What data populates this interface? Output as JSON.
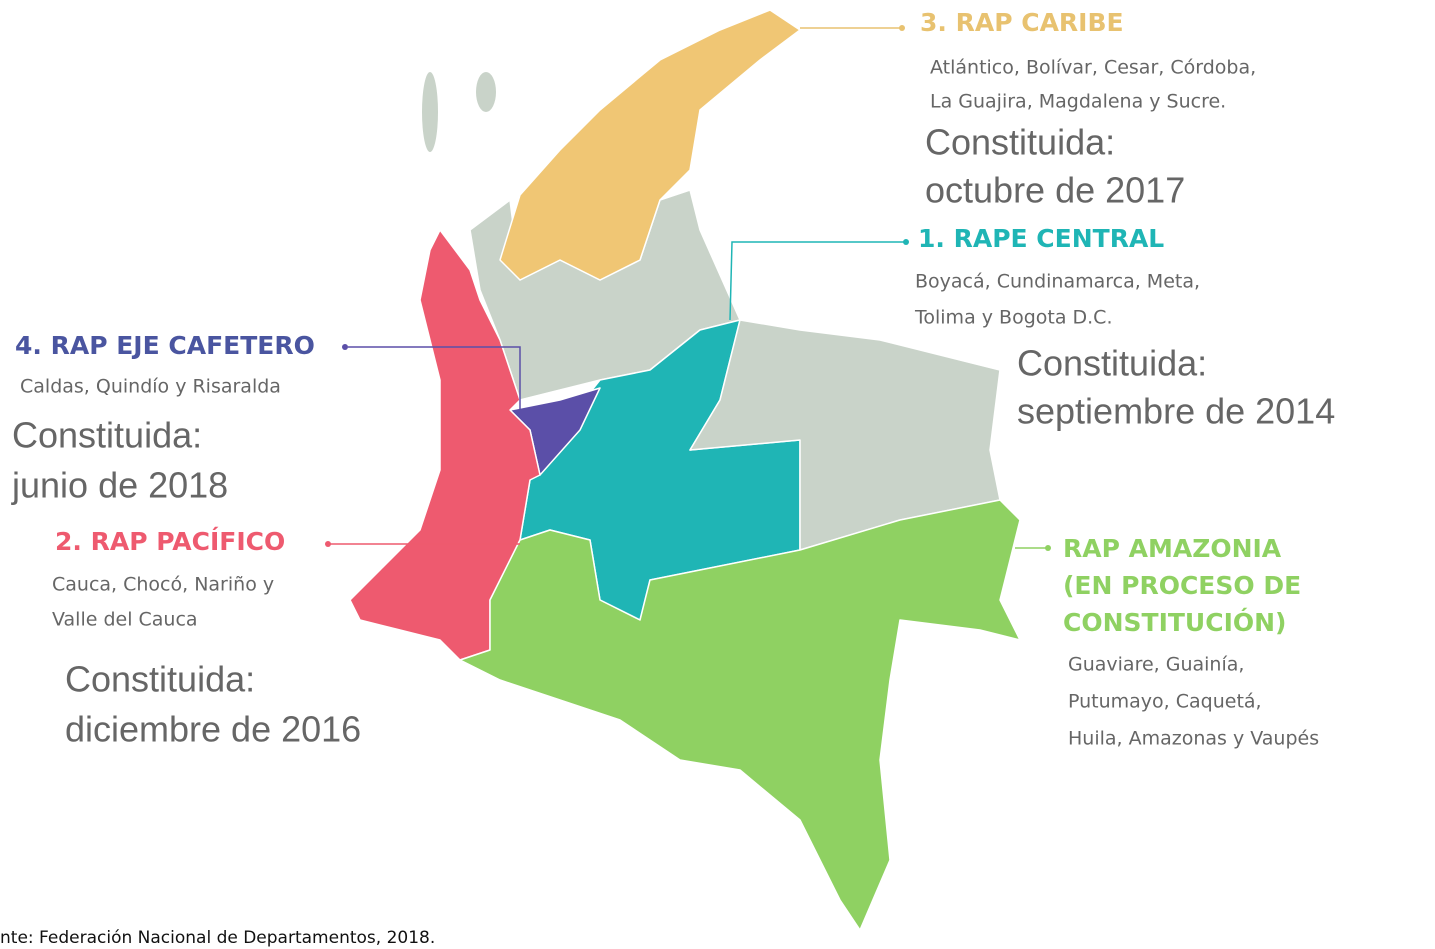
{
  "regions": [
    {
      "title": [
        "3. RAP CARIBE"
      ],
      "departments": [
        "Atlántico, Bolívar, Cesar, Córdoba,",
        "La Guajira, Magdalena y Sucre."
      ],
      "status": [
        "Constituida:",
        "octubre de 2017"
      ]
    },
    {
      "title": [
        "1. RAPE CENTRAL"
      ],
      "departments": [
        "Boyacá, Cundinamarca, Meta,",
        "Tolima y Bogota D.C."
      ],
      "status": [
        "Constituida:",
        "septiembre de 2014"
      ]
    },
    {
      "title": [
        "4. RAP EJE CAFETERO"
      ],
      "departments": [
        "Caldas, Quindío y Risaralda"
      ],
      "status": [
        "Constituida:",
        "junio de 2018"
      ]
    },
    {
      "title": [
        "2. RAP PACÍFICO"
      ],
      "departments": [
        "Cauca, Chocó, Nariño y",
        "Valle del Cauca"
      ],
      "status": [
        "Constituida:",
        "diciembre de 2016"
      ]
    },
    {
      "title": [
        "RAP AMAZONIA",
        "(EN PROCESO DE",
        "CONSTITUCIÓN)"
      ],
      "departments": [
        "Guaviare, Guainía,",
        "Putumayo, Caquetá,",
        "Huila, Amazonas y Vaupés"
      ]
    }
  ],
  "source": "nte: Federación Nacional de Departamentos, 2018."
}
